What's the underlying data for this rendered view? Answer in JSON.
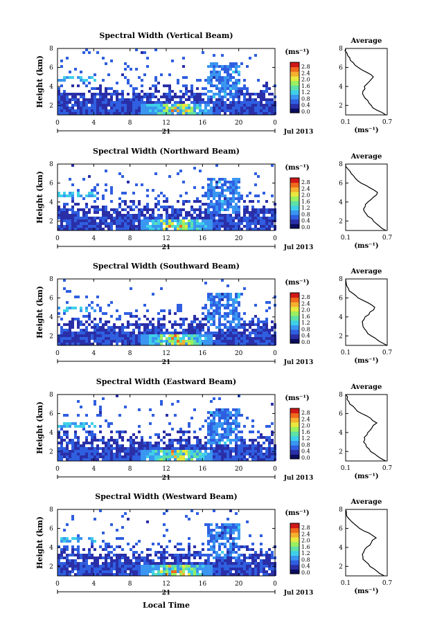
{
  "colors": {
    "scale": [
      "#0b0d5e",
      "#2a2fa8",
      "#2f5fe0",
      "#3a96f0",
      "#3fd0e8",
      "#5fe0a8",
      "#9af060",
      "#e8e840",
      "#f5b030",
      "#f06a1e",
      "#d01818"
    ],
    "axis": "#000000",
    "background": "#ffffff"
  },
  "shared": {
    "ylabel": "Height (km)",
    "yticks": [
      "2",
      "4",
      "6",
      "8"
    ],
    "xticks": [
      "0",
      "4",
      "8",
      "12",
      "16",
      "20",
      "0"
    ],
    "date_mark": "21",
    "date_label": "Jul 2013",
    "colorbar_unit": "(ms⁻¹)",
    "colorbar_ticks": [
      "2.8",
      "2.4",
      "2.0",
      "1.6",
      "1.2",
      "0.8",
      "0.4",
      "0.0"
    ],
    "avg_title": "Average",
    "avg_yticks": [
      "2",
      "4",
      "6",
      "8"
    ],
    "avg_xticks": [
      "0.1",
      "0.7"
    ],
    "avg_xlabel": "(ms⁻¹)",
    "xlabel": "Local Time"
  },
  "panels": [
    {
      "title": "Spectral Width (Vertical Beam)"
    },
    {
      "title": "Spectral Width (Northward Beam)"
    },
    {
      "title": "Spectral Width (Southward Beam)"
    },
    {
      "title": "Spectral Width (Eastward Beam)"
    },
    {
      "title": "Spectral Width (Westward Beam)"
    }
  ],
  "chart_data": [
    {
      "type": "heatmap",
      "title": "Spectral Width (Vertical Beam)",
      "ylabel": "Height (km)",
      "x_range_hours": [
        0,
        24
      ],
      "y_range_km": [
        1,
        8
      ],
      "colorbar_range": [
        0.0,
        2.8
      ],
      "colorbar_unit": "(ms⁻¹)",
      "average_profile": {
        "title": "Average",
        "xlim": [
          0.1,
          0.7
        ],
        "ylim": [
          1,
          8
        ],
        "height": [
          1.0,
          1.5,
          2.0,
          2.5,
          3.0,
          3.5,
          4.0,
          4.5,
          5.0,
          5.5,
          6.0,
          6.5,
          7.0,
          7.5,
          8.0
        ],
        "value": [
          0.68,
          0.55,
          0.47,
          0.42,
          0.36,
          0.35,
          0.37,
          0.44,
          0.5,
          0.4,
          0.28,
          0.21,
          0.16,
          0.12,
          0.1
        ]
      }
    },
    {
      "type": "heatmap",
      "title": "Spectral Width (Northward Beam)",
      "ylabel": "Height (km)",
      "x_range_hours": [
        0,
        24
      ],
      "y_range_km": [
        1,
        8
      ],
      "colorbar_range": [
        0.0,
        2.8
      ],
      "colorbar_unit": "(ms⁻¹)",
      "average_profile": {
        "title": "Average",
        "xlim": [
          0.1,
          0.7
        ],
        "ylim": [
          1,
          8
        ],
        "height": [
          1.0,
          1.5,
          2.0,
          2.5,
          3.0,
          3.5,
          4.0,
          4.5,
          5.0,
          5.5,
          6.0,
          6.5,
          7.0,
          7.5,
          8.0
        ],
        "value": [
          0.68,
          0.58,
          0.5,
          0.42,
          0.37,
          0.38,
          0.42,
          0.5,
          0.56,
          0.45,
          0.32,
          0.24,
          0.18,
          0.13,
          0.1
        ]
      }
    },
    {
      "type": "heatmap",
      "title": "Spectral Width (Southward Beam)",
      "ylabel": "Height (km)",
      "x_range_hours": [
        0,
        24
      ],
      "y_range_km": [
        1,
        8
      ],
      "colorbar_range": [
        0.0,
        2.8
      ],
      "colorbar_unit": "(ms⁻¹)",
      "average_profile": {
        "title": "Average",
        "xlim": [
          0.1,
          0.7
        ],
        "ylim": [
          1,
          8
        ],
        "height": [
          1.0,
          1.5,
          2.0,
          2.5,
          3.0,
          3.5,
          4.0,
          4.5,
          5.0,
          5.5,
          6.0,
          6.5,
          7.0,
          7.5,
          8.0
        ],
        "value": [
          0.7,
          0.57,
          0.47,
          0.4,
          0.35,
          0.34,
          0.38,
          0.45,
          0.52,
          0.42,
          0.28,
          0.2,
          0.14,
          0.11,
          0.1
        ]
      }
    },
    {
      "type": "heatmap",
      "title": "Spectral Width (Eastward Beam)",
      "ylabel": "Height (km)",
      "x_range_hours": [
        0,
        24
      ],
      "y_range_km": [
        1,
        8
      ],
      "colorbar_range": [
        0.0,
        2.8
      ],
      "colorbar_unit": "(ms⁻¹)",
      "average_profile": {
        "title": "Average",
        "xlim": [
          0.1,
          0.7
        ],
        "ylim": [
          1,
          8
        ],
        "height": [
          1.0,
          1.5,
          2.0,
          2.5,
          3.0,
          3.5,
          4.0,
          4.5,
          5.0,
          5.5,
          6.0,
          6.5,
          7.0,
          7.5,
          8.0
        ],
        "value": [
          0.68,
          0.56,
          0.46,
          0.4,
          0.36,
          0.37,
          0.42,
          0.48,
          0.55,
          0.46,
          0.33,
          0.24,
          0.16,
          0.12,
          0.1
        ]
      }
    },
    {
      "type": "heatmap",
      "title": "Spectral Width (Westward Beam)",
      "ylabel": "Height (km)",
      "x_range_hours": [
        0,
        24
      ],
      "y_range_km": [
        1,
        8
      ],
      "colorbar_range": [
        0.0,
        2.8
      ],
      "colorbar_unit": "(ms⁻¹)",
      "xlabel": "Local Time",
      "average_profile": {
        "title": "Average",
        "xlim": [
          0.1,
          0.7
        ],
        "ylim": [
          1,
          8
        ],
        "height": [
          1.0,
          1.5,
          2.0,
          2.5,
          3.0,
          3.5,
          4.0,
          4.5,
          5.0,
          5.5,
          6.0,
          6.5,
          7.0,
          7.5,
          8.0
        ],
        "value": [
          0.66,
          0.55,
          0.45,
          0.39,
          0.35,
          0.36,
          0.4,
          0.47,
          0.54,
          0.44,
          0.3,
          0.22,
          0.15,
          0.11,
          0.1
        ]
      }
    }
  ]
}
